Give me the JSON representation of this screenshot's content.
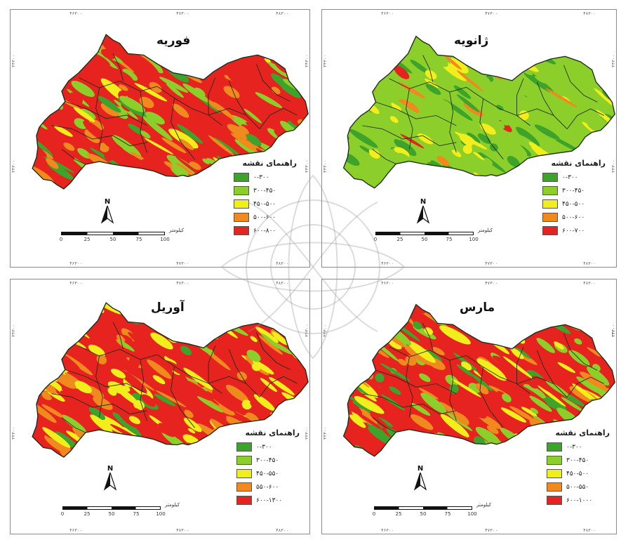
{
  "legend_title": "راهنمای نقشه",
  "scale_unit": "کیلومتر",
  "north_label": "N",
  "colors": {
    "c1": "#3ea32a",
    "c2": "#8ccf2a",
    "c3": "#f2ee1c",
    "c4": "#f08a1e",
    "c5": "#e6231e",
    "boundary": "#1c2b14"
  },
  "panels": [
    {
      "id": "february",
      "title": "فوریه",
      "legend": [
        "۰-۳۰۰",
        "۳۰۰-۴۵۰",
        "۴۵۰-۵۰۰",
        "۵۰۰-۶۰۰",
        "۶۰۰-۸۰۰"
      ],
      "scale_ticks": [
        "0",
        "25",
        "50",
        "75",
        "100"
      ],
      "coords_top": [
        "۴۶۳۰۰",
        "۴۷۳۰۰",
        "۴۸۳۰۰"
      ],
      "coords_bottom": [
        "۴۶۳۰۰",
        "۴۷۳۰۰",
        "۴۸۳۰۰"
      ],
      "coords_left": [
        "۳۴۳۰۰",
        "۳۳۳۰۰"
      ],
      "coords_right": [
        "۳۴۳۰۰",
        "۳۳۳۰۰"
      ]
    },
    {
      "id": "january",
      "title": "ژانویه",
      "legend": [
        "۰-۳۰۰",
        "۳۰۰-۴۵۰",
        "۴۵۰-۵۰۰",
        "۵۰۰-۶۰۰",
        "۶۰۰-۷۰۰"
      ],
      "scale_ticks": [
        "0",
        "25",
        "50",
        "75",
        "100"
      ],
      "coords_top": [
        "۴۶۳۰۰",
        "۴۷۳۰۰",
        "۴۸۳۰۰"
      ],
      "coords_bottom": [
        "۴۶۳۰۰",
        "۴۷۳۰۰",
        "۴۸۳۰۰"
      ],
      "coords_left": [
        "۳۴۳۰۰",
        "۳۳۳۰۰"
      ],
      "coords_right": [
        "۳۴۳۰۰",
        "۳۳۳۰۰"
      ]
    },
    {
      "id": "april",
      "title": "آوریل",
      "legend": [
        "۰-۳۰۰",
        "۳۰۰-۴۵۰",
        "۴۵۰-۵۵۰",
        "۵۵۰-۶۰۰",
        "۶۰۰-۱۳۰۰"
      ],
      "scale_ticks": [
        "0",
        "25",
        "50",
        "75",
        "100"
      ],
      "coords_top": [
        "۴۶۳۰۰",
        "۴۷۳۰۰",
        "۴۸۳۰۰"
      ],
      "coords_bottom": [
        "۴۶۳۰۰",
        "۴۷۳۰۰",
        "۴۸۳۰۰"
      ],
      "coords_left": [
        "۳۴۳۰۰",
        "۳۳۳۰۰"
      ],
      "coords_right": [
        "۳۴۳۰۰",
        "۳۳۳۰۰"
      ]
    },
    {
      "id": "march",
      "title": "مارس",
      "legend": [
        "۰-۳۰۰",
        "۳۰۰-۴۵۰",
        "۴۵۰-۵۰۰",
        "۵۰۰-۵۵۰",
        "۶۰۰-۱۰۰۰"
      ],
      "scale_ticks": [
        "0",
        "25",
        "50",
        "75",
        "100"
      ],
      "coords_top": [
        "۴۶۳۰۰",
        "۴۷۳۰۰",
        "۴۸۳۰۰"
      ],
      "coords_bottom": [
        "۴۶۳۰۰",
        "۴۷۳۰۰",
        "۴۸۳۰۰"
      ],
      "coords_left": [
        "۳۴۳۰۰",
        "۳۳۳۰۰"
      ],
      "coords_right": [
        "۳۴۳۰۰",
        "۳۳۳۰۰"
      ]
    }
  ]
}
